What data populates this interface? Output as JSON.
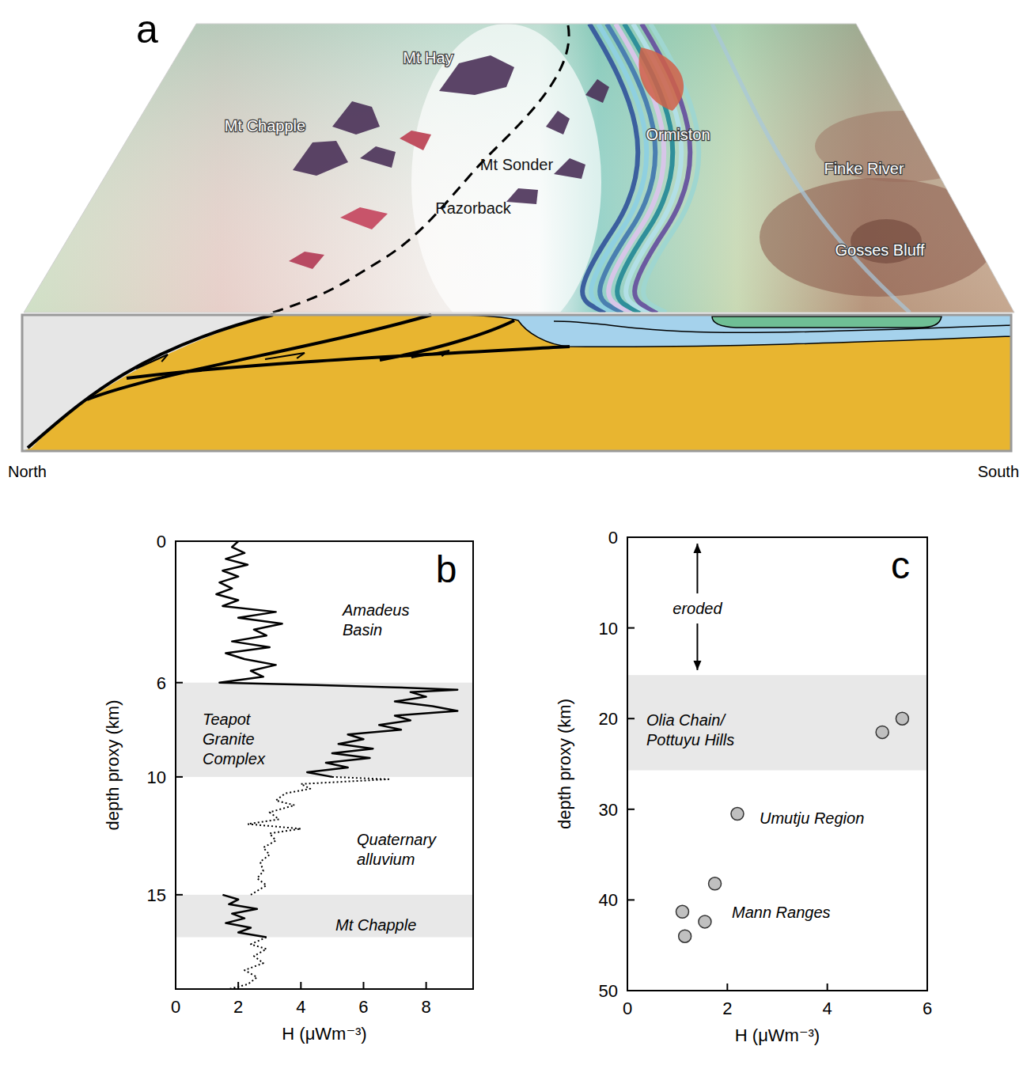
{
  "panel_a": {
    "letter": "a",
    "labels": [
      "Mt Hay",
      "Mt Chapple",
      "Mt Sonder",
      "Razorback",
      "Ormiston",
      "Finke River",
      "Gosses Bluff"
    ],
    "directions": [
      "North",
      "South"
    ]
  },
  "chart_data": [
    {
      "type": "line",
      "letter": "b",
      "xlabel": "H (μWm⁻³)",
      "ylabel": "depth proxy (km)",
      "xlim": [
        0,
        9.5
      ],
      "xticks": [
        0,
        2,
        4,
        6,
        8
      ],
      "ylim": [
        0,
        19
      ],
      "yticks": [
        0,
        6,
        10,
        15
      ],
      "bands": [
        [
          6,
          10
        ],
        [
          15,
          16.8
        ]
      ],
      "annotations": [
        "Amadeus Basin",
        "Teapot Granite Complex",
        "Quaternary alluvium",
        "Mt Chapple"
      ],
      "series": [
        {
          "line_style": "solid",
          "depth": [
            0,
            0.25,
            0.5,
            0.75,
            1.0,
            1.25,
            1.5,
            1.75,
            2.0,
            2.25,
            2.5,
            2.75,
            3.0,
            3.25,
            3.5,
            3.75,
            4.0,
            4.25,
            4.5,
            4.75,
            5.0,
            5.25,
            5.5,
            5.75,
            6.0,
            6.1,
            6.2,
            6.3,
            6.4,
            6.6,
            6.8,
            7.0,
            7.2,
            7.4,
            7.6,
            7.8,
            8.0,
            8.2,
            8.4,
            8.6,
            8.8,
            9.0,
            9.2,
            9.4,
            9.6,
            9.8,
            10.0
          ],
          "values": [
            2.0,
            1.8,
            2.2,
            1.6,
            2.3,
            1.5,
            2.0,
            1.4,
            1.8,
            1.3,
            2.0,
            1.5,
            3.2,
            2.0,
            3.4,
            2.5,
            2.9,
            1.8,
            3.0,
            1.6,
            2.2,
            3.2,
            2.4,
            2.8,
            1.4,
            4.5,
            7.0,
            9.0,
            7.5,
            8.0,
            7.0,
            8.2,
            9.0,
            7.0,
            7.5,
            6.5,
            7.2,
            5.5,
            6.0,
            5.2,
            6.3,
            5.0,
            6.2,
            4.8,
            5.5,
            4.2,
            5.0
          ]
        },
        {
          "line_style": "dotted",
          "depth": [
            10.0,
            10.1,
            10.3,
            10.5,
            10.7,
            11.0,
            11.2,
            11.5,
            11.8,
            12.0,
            12.2,
            12.4,
            12.7,
            13.0,
            13.3,
            13.6,
            14.0,
            14.3,
            14.6,
            15.0
          ],
          "values": [
            5.0,
            6.8,
            4.0,
            4.3,
            3.5,
            3.2,
            3.8,
            3.0,
            3.3,
            2.3,
            4.0,
            3.0,
            3.2,
            2.8,
            3.0,
            2.7,
            2.8,
            2.6,
            2.9,
            2.4
          ]
        },
        {
          "line_style": "solid",
          "depth": [
            15.0,
            15.2,
            15.4,
            15.6,
            15.8,
            16.0,
            16.2,
            16.4,
            16.6,
            16.8
          ],
          "values": [
            1.5,
            2.0,
            1.7,
            2.6,
            1.8,
            2.2,
            1.6,
            2.4,
            2.0,
            2.9
          ]
        },
        {
          "line_style": "dotted",
          "depth": [
            16.8,
            17.1,
            17.3,
            17.6,
            17.9,
            18.2,
            18.5,
            18.8,
            19.0
          ],
          "values": [
            2.9,
            2.4,
            2.9,
            2.5,
            2.8,
            2.2,
            2.6,
            2.3,
            1.7
          ]
        }
      ]
    },
    {
      "type": "scatter",
      "letter": "c",
      "xlabel": "H (μWm⁻³)",
      "ylabel": "depth proxy (km)",
      "xlim": [
        0,
        6
      ],
      "xticks": [
        0,
        2,
        4,
        6
      ],
      "ylim": [
        0,
        50
      ],
      "yticks": [
        0,
        10,
        20,
        30,
        40,
        50
      ],
      "bands": [
        [
          15.2,
          25.7
        ]
      ],
      "eroded_range": [
        0,
        15
      ],
      "annotations": [
        "eroded",
        "Olia Chain/ Pottuyu Hills",
        "Umutju Region",
        "Mann Ranges"
      ],
      "x": [
        5.5,
        5.1,
        2.2,
        1.75,
        1.1,
        1.55,
        1.15
      ],
      "y": [
        20,
        21.5,
        30.5,
        38.2,
        41.3,
        42.4,
        44
      ],
      "color": "#c0c0c0",
      "marker": "circle"
    }
  ]
}
